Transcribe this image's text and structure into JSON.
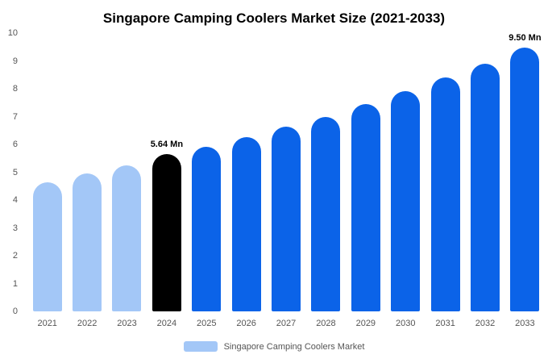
{
  "title": "Singapore Camping Coolers Market Size (2021-2033)",
  "legend": {
    "label": "Singapore Camping Coolers Market",
    "swatch_color": "#A3C7F7"
  },
  "chart_data": {
    "type": "bar",
    "title": "Singapore Camping Coolers Market Size (2021-2033)",
    "categories": [
      "2021",
      "2022",
      "2023",
      "2024",
      "2025",
      "2026",
      "2027",
      "2028",
      "2029",
      "2030",
      "2031",
      "2032",
      "2033"
    ],
    "values": [
      4.65,
      4.95,
      5.25,
      5.64,
      5.92,
      6.25,
      6.65,
      7.0,
      7.45,
      7.9,
      8.4,
      8.9,
      9.5
    ],
    "bar_colors": [
      "#A3C7F7",
      "#A3C7F7",
      "#A3C7F7",
      "#000000",
      "#0B63E8",
      "#0B63E8",
      "#0B63E8",
      "#0B63E8",
      "#0B63E8",
      "#0B63E8",
      "#0B63E8",
      "#0B63E8",
      "#0B63E8"
    ],
    "annotations": [
      {
        "category": "2024",
        "text": "5.64 Mn"
      },
      {
        "category": "2033",
        "text": "9.50 Mn"
      }
    ],
    "xlabel": "",
    "ylabel": "",
    "ylim": [
      0,
      10
    ],
    "yticks": [
      0,
      1,
      2,
      3,
      4,
      5,
      6,
      7,
      8,
      9,
      10
    ],
    "grid": false,
    "legend_position": "bottom"
  }
}
